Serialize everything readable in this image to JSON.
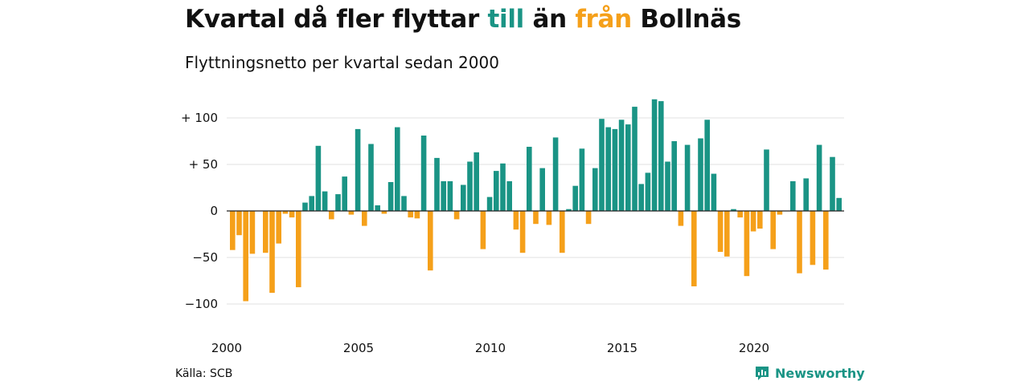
{
  "title": {
    "part1": "Kvartal då fler flyttar ",
    "part2": "till",
    "part3": " än ",
    "part4": "från",
    "part5": " Bollnäs"
  },
  "subtitle": "Flyttningsnetto per kvartal sedan 2000",
  "source": "Källa: SCB",
  "brand": "Newsworthy",
  "colors": {
    "positive": "#1a9485",
    "negative": "#f5a01a",
    "grid": "#e1e1e1",
    "axis": "#222222"
  },
  "chart_data": {
    "type": "bar",
    "title": "Kvartal då fler flyttar till än från Bollnäs",
    "subtitle": "Flyttningsnetto per kvartal sedan 2000",
    "xlabel": "",
    "ylabel": "",
    "ylim": [
      -120,
      130
    ],
    "y_ticks": [
      {
        "value": 100,
        "label": "+ 100"
      },
      {
        "value": 50,
        "label": "+  50"
      },
      {
        "value": 0,
        "label": "0"
      },
      {
        "value": -50,
        "label": "−50"
      },
      {
        "value": -100,
        "label": "−100"
      }
    ],
    "x_ticks": [
      {
        "year": 2000,
        "label": "2000"
      },
      {
        "year": 2005,
        "label": "2005"
      },
      {
        "year": 2010,
        "label": "2010"
      },
      {
        "year": 2015,
        "label": "2015"
      },
      {
        "year": 2020,
        "label": "2020"
      }
    ],
    "start_year": 2000,
    "grid": true,
    "values": [
      -42,
      -26,
      -97,
      -46,
      0,
      -45,
      -88,
      -35,
      -3,
      -7,
      -82,
      9,
      16,
      70,
      21,
      -9,
      18,
      37,
      -4,
      88,
      -16,
      72,
      6,
      -3,
      31,
      90,
      16,
      -7,
      -8,
      81,
      -64,
      57,
      32,
      32,
      -9,
      28,
      53,
      63,
      -41,
      15,
      43,
      51,
      32,
      -20,
      -45,
      69,
      -14,
      46,
      -15,
      79,
      -45,
      2,
      27,
      67,
      -14,
      46,
      99,
      90,
      88,
      98,
      93,
      112,
      29,
      41,
      120,
      118,
      53,
      75,
      -16,
      71,
      -81,
      78,
      98,
      40,
      -44,
      -49,
      2,
      -7,
      -70,
      -22,
      -19,
      66,
      -41,
      -4,
      0,
      32,
      -67,
      35,
      -58,
      71,
      -63,
      58,
      14
    ]
  }
}
